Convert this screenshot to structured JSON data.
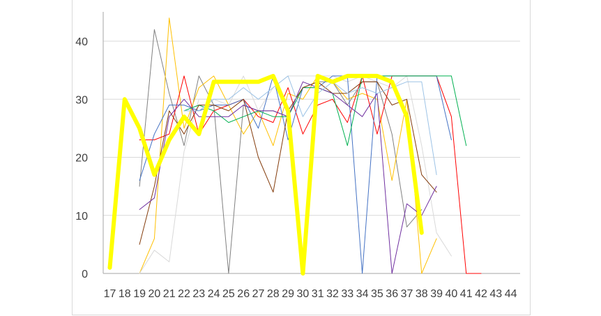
{
  "chart_data": {
    "type": "line",
    "title": "",
    "xlabel": "",
    "ylabel": "",
    "x": [
      "17",
      "18",
      "19",
      "20",
      "21",
      "22",
      "23",
      "24",
      "25",
      "26",
      "27",
      "28",
      "29",
      "30",
      "31",
      "32",
      "33",
      "34",
      "35",
      "36",
      "37",
      "38",
      "39",
      "40",
      "41",
      "42",
      "43",
      "44"
    ],
    "ylim": [
      0,
      45
    ],
    "yticks": [
      0,
      10,
      20,
      30,
      40
    ],
    "grid": true,
    "legend": "none",
    "series": [
      {
        "color": "#FFFF00",
        "width": 6,
        "values": [
          1,
          30,
          25,
          17,
          23,
          27,
          24,
          33,
          33,
          33,
          33,
          34,
          28,
          0,
          34,
          33,
          34,
          34,
          34,
          33,
          27,
          7,
          null,
          null,
          null,
          null,
          null,
          null
        ]
      },
      {
        "color": "#808080",
        "width": 1,
        "values": [
          null,
          null,
          15,
          42,
          31,
          22,
          34,
          29,
          0,
          29,
          28,
          28,
          27,
          32,
          33,
          33,
          29,
          33,
          33,
          24,
          8,
          11,
          null,
          null,
          null,
          null,
          null,
          null
        ]
      },
      {
        "color": "#FFC000",
        "width": 1,
        "values": [
          null,
          null,
          0,
          6,
          44,
          25,
          32,
          34,
          29,
          24,
          28,
          22,
          31,
          30,
          34,
          33,
          30,
          31,
          30,
          16,
          30,
          0,
          6,
          null,
          null,
          null,
          null,
          null
        ]
      },
      {
        "color": "#D9D9D9",
        "width": 1,
        "values": [
          null,
          null,
          0,
          4,
          2,
          21,
          30,
          30,
          29,
          34,
          28,
          32,
          34,
          34,
          34,
          34,
          33,
          34,
          33,
          32,
          34,
          22,
          7,
          3,
          null,
          null,
          null,
          null
        ]
      },
      {
        "color": "#FF0000",
        "width": 1,
        "values": [
          null,
          null,
          23,
          23,
          24,
          34,
          24,
          28,
          29,
          30,
          27,
          26,
          32,
          24,
          29,
          30,
          26,
          34,
          24,
          34,
          34,
          34,
          34,
          27,
          0,
          0,
          null,
          null
        ]
      },
      {
        "color": "#4472C4",
        "width": 1,
        "values": [
          null,
          null,
          16,
          24,
          29,
          29,
          28,
          29,
          29,
          30,
          25,
          34,
          23,
          32,
          32,
          34,
          34,
          0,
          34,
          34,
          34,
          34,
          34,
          23,
          null,
          null,
          null,
          null
        ]
      },
      {
        "color": "#00B050",
        "width": 1,
        "values": [
          null,
          null,
          null,
          null,
          null,
          28,
          29,
          28,
          26,
          27,
          28,
          27,
          27,
          32,
          32,
          31,
          22,
          34,
          34,
          34,
          34,
          34,
          34,
          34,
          22,
          null,
          null,
          null
        ]
      },
      {
        "color": "#843C0C",
        "width": 1,
        "values": [
          null,
          null,
          5,
          15,
          28,
          24,
          29,
          29,
          28,
          30,
          20,
          14,
          28,
          32,
          33,
          31,
          31,
          33,
          33,
          29,
          30,
          17,
          14,
          null,
          null,
          null,
          null,
          null
        ]
      },
      {
        "color": "#7030A0",
        "width": 1,
        "values": [
          null,
          null,
          11,
          13,
          27,
          30,
          27,
          27,
          27,
          29,
          28,
          28,
          27,
          33,
          32,
          31,
          29,
          27,
          31,
          0,
          12,
          10,
          15,
          null,
          null,
          null,
          null,
          null
        ]
      },
      {
        "color": "#9DC3E6",
        "width": 1,
        "values": [
          null,
          null,
          null,
          null,
          null,
          28,
          28,
          30,
          30,
          32,
          30,
          32,
          34,
          27,
          31,
          33,
          31,
          32,
          31,
          32,
          33,
          33,
          17,
          null,
          null,
          null,
          null,
          null
        ]
      }
    ]
  }
}
